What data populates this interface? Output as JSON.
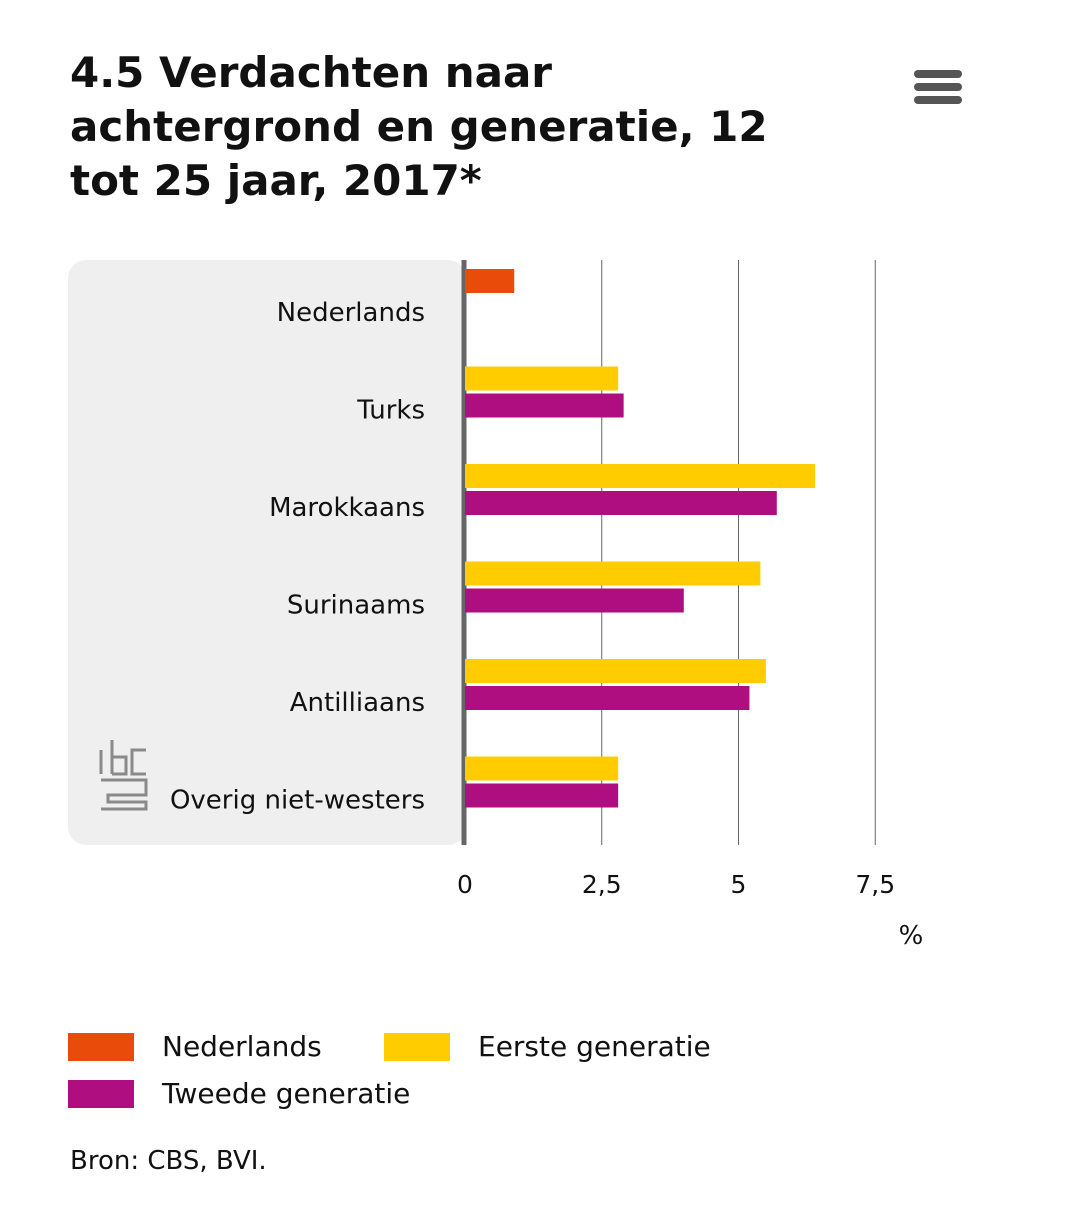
{
  "title": "4.5 Verdachten naar achtergrond en generatie, 12 tot 25 jaar, 2017*",
  "menu_icon": "hamburger-menu-icon",
  "logo": "cbs-logo",
  "colors": {
    "nederlands": "#e94c0a",
    "eerste": "#ffcc00",
    "tweede": "#af0e80",
    "panel": "#efefef",
    "grid": "#666666",
    "axis": "#666666"
  },
  "chart_data": {
    "type": "bar",
    "orientation": "horizontal",
    "categories": [
      "Nederlands",
      "Turks",
      "Marokkaans",
      "Surinaams",
      "Antilliaans",
      "Overig niet-westers"
    ],
    "series": [
      {
        "name": "Nederlands",
        "values": [
          0.9,
          null,
          null,
          null,
          null,
          null
        ]
      },
      {
        "name": "Eerste generatie",
        "values": [
          null,
          2.8,
          6.4,
          5.4,
          5.5,
          2.8
        ]
      },
      {
        "name": "Tweede generatie",
        "values": [
          null,
          2.9,
          5.7,
          4.0,
          5.2,
          2.8
        ]
      }
    ],
    "xlim": [
      0,
      7.5
    ],
    "xticks": [
      0,
      2.5,
      5,
      7.5
    ],
    "xtick_labels": [
      "0",
      "2,5",
      "5",
      "7,5"
    ],
    "xlabel": "%",
    "grid": true,
    "legend_position": "bottom"
  },
  "source": "Bron: CBS, BVI."
}
